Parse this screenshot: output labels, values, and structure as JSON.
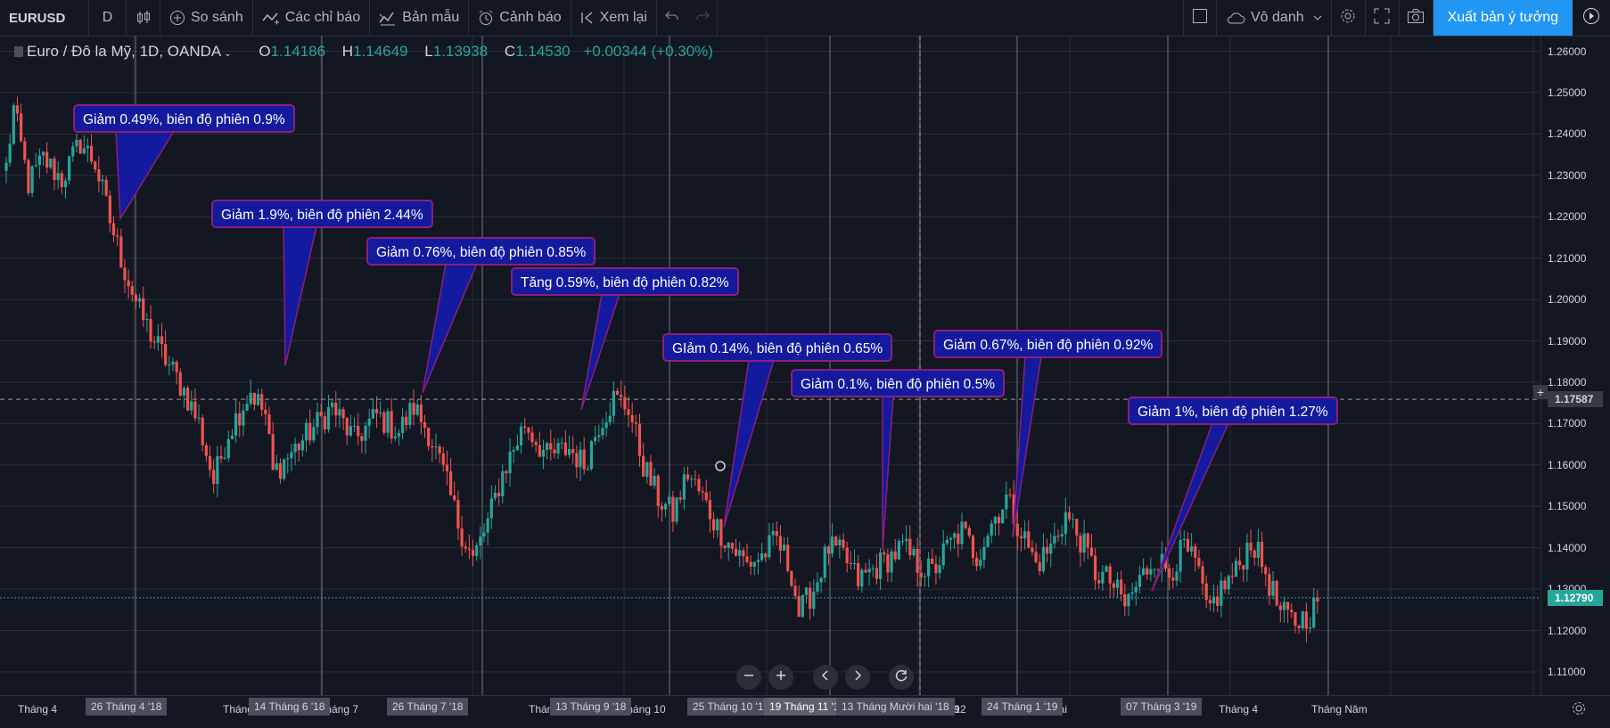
{
  "toolbar": {
    "symbol": "EURUSD",
    "interval": "D",
    "compare_label": "So sánh",
    "indicators_label": "Các chỉ báo",
    "templates_label": "Bản mẫu",
    "alerts_label": "Cảnh báo",
    "replay_label": "Xem lại",
    "layout_name": "Vô danh",
    "publish_label": "Xuất bản ý tưởng"
  },
  "legend": {
    "title": "Euro / Đô la Mỹ, 1D, OANDA",
    "o_label": "O",
    "o_value": "1.14186",
    "h_label": "H",
    "h_value": "1.14649",
    "l_label": "L",
    "l_value": "1.13938",
    "c_label": "C",
    "c_value": "1.14530",
    "change": "+0.00344 (+0.30%)"
  },
  "colors": {
    "up": "#26a69a",
    "down": "#ef5350",
    "annotation_bg": "#131a9e",
    "annotation_border": "#8a1f7c",
    "accent": "#2196f3"
  },
  "chart_data": {
    "type": "candlestick",
    "ylim": [
      1.105,
      1.265
    ],
    "y_ticks": [
      "1.26000",
      "1.25000",
      "1.24000",
      "1.23000",
      "1.22000",
      "1.21000",
      "1.20000",
      "1.19000",
      "1.18000",
      "1.17000",
      "1.16000",
      "1.15000",
      "1.14000",
      "1.13000",
      "1.12000",
      "1.11000"
    ],
    "x_ticks": [
      "Tháng 4",
      "Tháng",
      "Tháng 7",
      "Tháng",
      "Tháng 10",
      "Tháng 12",
      "2019",
      "Hai",
      "Tháng 4",
      "Tháng Năm"
    ],
    "x_boxes": [
      "26 Tháng 4 '18",
      "14 Tháng 6 '18",
      "26 Tháng 7 '18",
      "13 Tháng 9 '18",
      "25 Tháng 10 '18",
      "19 Tháng 11 '18",
      "13 Tháng Mười hai '18",
      "24 Tháng 1 '19",
      "07 Tháng 3 '19"
    ],
    "crosshair_price": "1.17587",
    "last_price": "1.12790",
    "keypoints": [
      [
        0,
        1.232
      ],
      [
        2,
        1.246
      ],
      [
        6,
        1.228
      ],
      [
        10,
        1.234
      ],
      [
        15,
        1.229
      ],
      [
        20,
        1.238
      ],
      [
        24,
        1.233
      ],
      [
        28,
        1.219
      ],
      [
        32,
        1.207
      ],
      [
        36,
        1.197
      ],
      [
        40,
        1.19
      ],
      [
        44,
        1.184
      ],
      [
        48,
        1.178
      ],
      [
        52,
        1.17
      ],
      [
        56,
        1.156
      ],
      [
        60,
        1.168
      ],
      [
        66,
        1.178
      ],
      [
        70,
        1.172
      ],
      [
        72,
        1.158
      ],
      [
        76,
        1.162
      ],
      [
        82,
        1.168
      ],
      [
        88,
        1.174
      ],
      [
        94,
        1.166
      ],
      [
        100,
        1.172
      ],
      [
        106,
        1.168
      ],
      [
        110,
        1.174
      ],
      [
        114,
        1.168
      ],
      [
        118,
        1.158
      ],
      [
        122,
        1.146
      ],
      [
        126,
        1.137
      ],
      [
        130,
        1.146
      ],
      [
        134,
        1.158
      ],
      [
        140,
        1.17
      ],
      [
        146,
        1.162
      ],
      [
        152,
        1.164
      ],
      [
        156,
        1.16
      ],
      [
        160,
        1.17
      ],
      [
        164,
        1.176
      ],
      [
        168,
        1.174
      ],
      [
        172,
        1.16
      ],
      [
        176,
        1.152
      ],
      [
        180,
        1.148
      ],
      [
        184,
        1.158
      ],
      [
        188,
        1.152
      ],
      [
        192,
        1.145
      ],
      [
        196,
        1.14
      ],
      [
        200,
        1.136
      ],
      [
        204,
        1.138
      ],
      [
        208,
        1.142
      ],
      [
        212,
        1.134
      ],
      [
        214,
        1.124
      ],
      [
        218,
        1.13
      ],
      [
        222,
        1.14
      ],
      [
        226,
        1.138
      ],
      [
        230,
        1.132
      ],
      [
        236,
        1.136
      ],
      [
        242,
        1.14
      ],
      [
        246,
        1.136
      ],
      [
        250,
        1.134
      ],
      [
        254,
        1.14
      ],
      [
        258,
        1.144
      ],
      [
        262,
        1.138
      ],
      [
        266,
        1.146
      ],
      [
        270,
        1.152
      ],
      [
        274,
        1.144
      ],
      [
        278,
        1.136
      ],
      [
        282,
        1.14
      ],
      [
        286,
        1.148
      ],
      [
        290,
        1.142
      ],
      [
        294,
        1.134
      ],
      [
        298,
        1.132
      ],
      [
        302,
        1.126
      ],
      [
        306,
        1.132
      ],
      [
        310,
        1.138
      ],
      [
        314,
        1.134
      ],
      [
        318,
        1.14
      ],
      [
        322,
        1.134
      ],
      [
        324,
        1.124
      ],
      [
        328,
        1.13
      ],
      [
        332,
        1.134
      ],
      [
        336,
        1.142
      ],
      [
        340,
        1.134
      ],
      [
        344,
        1.124
      ],
      [
        348,
        1.122
      ],
      [
        352,
        1.124
      ],
      [
        354,
        1.127
      ]
    ],
    "annotations": [
      {
        "text": "Giảm 0.49%, biên độ phiên 0.9%"
      },
      {
        "text": "Giảm 1.9%, biên độ phiên 2.44%"
      },
      {
        "text": "Giảm 0.76%, biên độ phiên 0.85%"
      },
      {
        "text": "Tăng 0.59%, biên độ phiên 0.82%"
      },
      {
        "text": "GIảm 0.14%, biên độ phiên 0.65%"
      },
      {
        "text": "Giảm 0.1%, biên độ phiên 0.5%"
      },
      {
        "text": "Giảm 0.67%, biên độ phiên 0.92%"
      },
      {
        "text": "Giảm 1%, biên độ phiên 1.27%"
      }
    ]
  }
}
